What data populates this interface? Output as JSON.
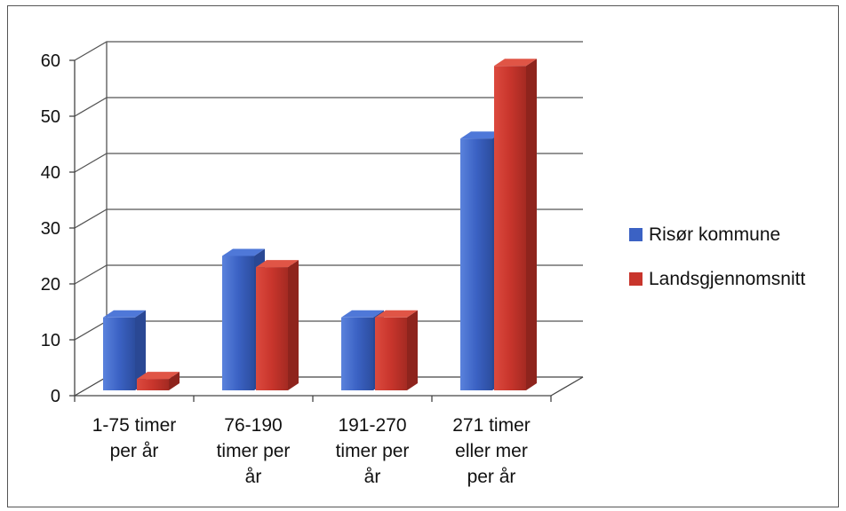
{
  "chart_data": {
    "type": "bar",
    "title": "",
    "xlabel": "",
    "ylabel": "",
    "ylim": [
      0,
      60
    ],
    "yticks": [
      0,
      10,
      20,
      30,
      40,
      50,
      60
    ],
    "grid": true,
    "legend_position": "right",
    "categories": [
      [
        "1-75 timer",
        "per år"
      ],
      [
        "76-190",
        "timer per",
        "år"
      ],
      [
        "191-270",
        "timer per",
        "år"
      ],
      [
        "271 timer",
        "eller mer",
        "per år"
      ]
    ],
    "series": [
      {
        "name": "Risør kommune",
        "color": "#3b62c4",
        "values": [
          14,
          25,
          14,
          46
        ]
      },
      {
        "name": "Landsgjennomsnitt",
        "color": "#c8352c",
        "values": [
          3,
          23,
          14,
          59
        ]
      }
    ]
  }
}
